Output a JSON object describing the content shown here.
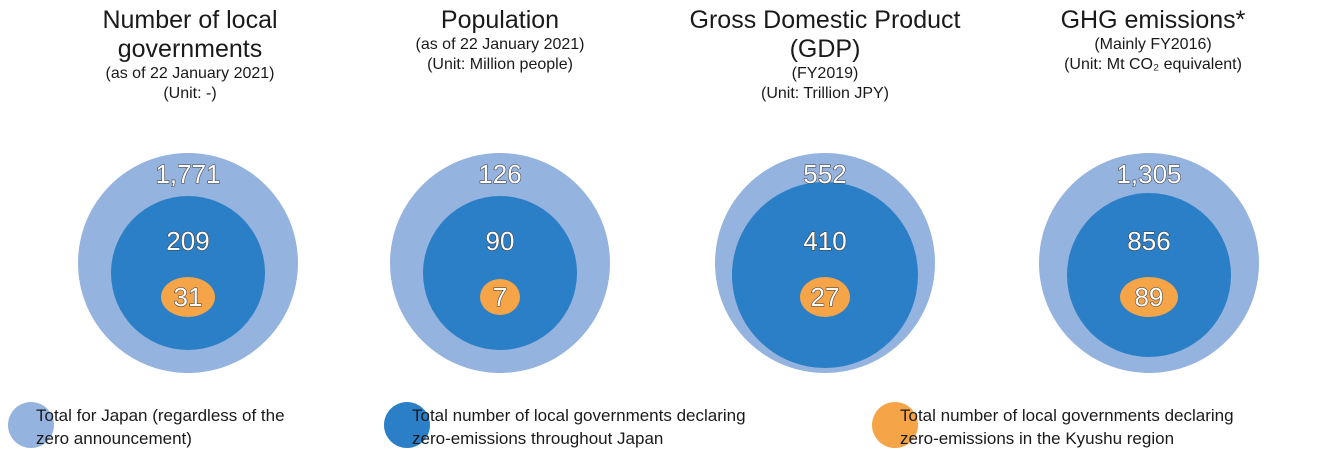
{
  "chart_data": [
    {
      "type": "nested-circles",
      "title": "Number of local governments",
      "subtitle_lines": [
        "(as of 22 January 2021)",
        "(Unit: -)"
      ],
      "values": {
        "total_japan": "1,771",
        "declaring_japan": "209",
        "declaring_kyushu": "31"
      }
    },
    {
      "type": "nested-circles",
      "title": "Population",
      "subtitle_lines": [
        "(as of 22 January 2021)",
        "(Unit: Million people)"
      ],
      "values": {
        "total_japan": "126",
        "declaring_japan": "90",
        "declaring_kyushu": "7"
      }
    },
    {
      "type": "nested-circles",
      "title": "Gross Domestic Product (GDP)",
      "subtitle_lines": [
        "(FY2019)",
        "(Unit: Trillion JPY)"
      ],
      "values": {
        "total_japan": "552",
        "declaring_japan": "410",
        "declaring_kyushu": "27"
      }
    },
    {
      "type": "nested-circles",
      "title": "GHG emissions*",
      "subtitle_lines": [
        "(Mainly FY2016)",
        "(Unit: Mt CO₂ equivalent)"
      ],
      "values": {
        "total_japan": "1,305",
        "declaring_japan": "856",
        "declaring_kyushu": "89"
      }
    }
  ],
  "legend": [
    {
      "key": "total_japan",
      "label": "Total for Japan (regardless of the\nzero announcement)",
      "color": "#95b3df"
    },
    {
      "key": "declaring_japan",
      "label": "Total number of local governments declaring\nzero-emissions throughout Japan",
      "color": "#2a7fc6"
    },
    {
      "key": "declaring_kyushu",
      "label": "Total number of local governments declaring\nzero-emissions in the Kyushu region",
      "color": "#f5a447"
    }
  ]
}
